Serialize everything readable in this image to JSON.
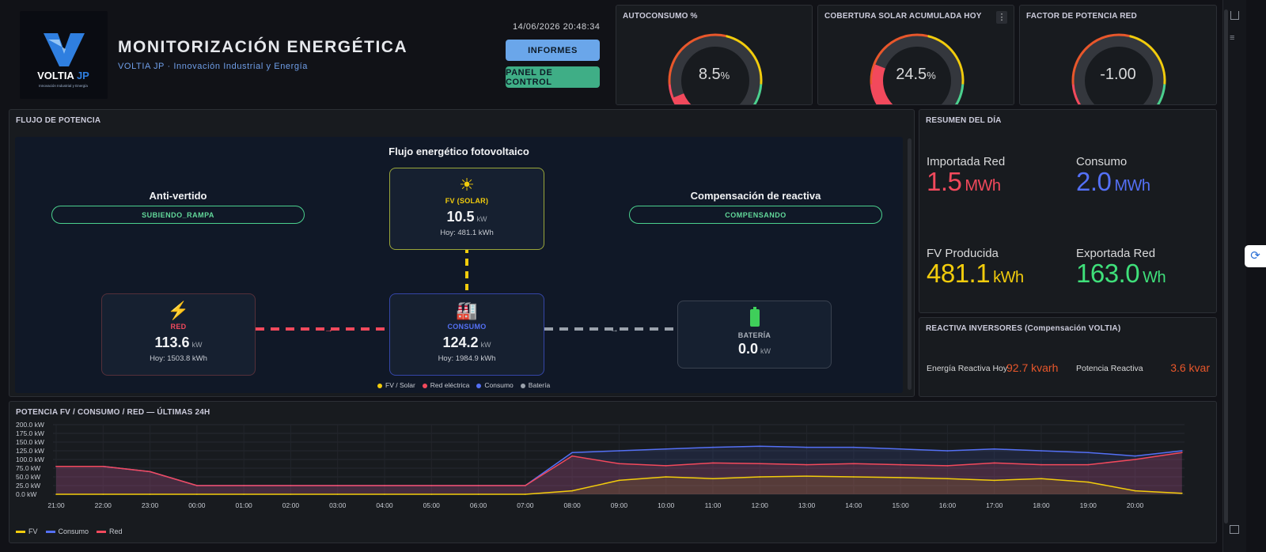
{
  "header": {
    "title": "MONITORIZACIÓN ENERGÉTICA",
    "subtitle": "VOLTIA JP · Innovación Industrial y Energía",
    "datetime": "14/06/2026 20:48:34",
    "logo_text": "VOLTIA JP",
    "logo_tagline": "Innovación Industrial y Energía",
    "btn_informes": "INFORMES",
    "btn_panel": "PANEL DE CONTROL"
  },
  "gauges": [
    {
      "title": "AUTOCONSUMO %",
      "value": "8.5",
      "unit": "%",
      "fraction": 0.085
    },
    {
      "title": "COBERTURA SOLAR ACUMULADA HOY",
      "value": "24.5",
      "unit": "%",
      "fraction": 0.245
    },
    {
      "title": "FACTOR DE POTENCIA RED",
      "value": "-1.00",
      "unit": "",
      "fraction": 0.0
    }
  ],
  "flow": {
    "panel_title": "FLUJO DE POTENCIA",
    "title": "Flujo energético fotovoltaico",
    "anti_vertido_title": "Anti-vertido",
    "anti_vertido_status": "SUBIENDO_RAMPA",
    "compensacion_title": "Compensación de reactiva",
    "compensacion_status": "COMPENSANDO",
    "solar": {
      "label": "FV (SOLAR)",
      "value": "10.5",
      "unit": "kW",
      "today": "Hoy: 481.1 kWh"
    },
    "red": {
      "label": "RED",
      "value": "113.6",
      "unit": "kW",
      "today": "Hoy: 1503.8 kWh"
    },
    "consumo": {
      "label": "CONSUMO",
      "value": "124.2",
      "unit": "kW",
      "today": "Hoy: 1984.9 kWh"
    },
    "bateria": {
      "label": "BATERÍA",
      "value": "0.0",
      "unit": "kW"
    },
    "legend": [
      "FV / Solar",
      "Red eléctrica",
      "Consumo",
      "Batería"
    ]
  },
  "summary": {
    "panel_title": "RESUMEN DEL DÍA",
    "importada_label": "Importada Red",
    "importada_value": "1.5",
    "importada_unit": "MWh",
    "consumo_label": "Consumo",
    "consumo_value": "2.0",
    "consumo_unit": "MWh",
    "fv_label": "FV Producida",
    "fv_value": "481.1",
    "fv_unit": "kWh",
    "exportada_label": "Exportada Red",
    "exportada_value": "163.0",
    "exportada_unit": "Wh"
  },
  "reactiva": {
    "panel_title": "REACTIVA INVERSORES (Compensación VOLTIA)",
    "energia_label": "Energía Reactiva Hoy",
    "energia_value": "92.7",
    "energia_unit": "kvarh",
    "potencia_label": "Potencia Reactiva",
    "potencia_value": "3.6",
    "potencia_unit": "kvar"
  },
  "colors": {
    "solar": "#f2cc0c",
    "red": "#f2495c",
    "consumo": "#5470f5",
    "bateria": "#9aa1ab",
    "green": "#4bd08e"
  },
  "chart_data": {
    "type": "line",
    "title": "POTENCIA FV / CONSUMO / RED — ÚLTIMAS 24H",
    "y_ticks": [
      "200.0 kW",
      "175.0 kW",
      "150.0 kW",
      "125.0 kW",
      "100.0 kW",
      "75.0 kW",
      "50.0 kW",
      "25.0 kW",
      "0.0 kW"
    ],
    "ylim": [
      0,
      200
    ],
    "x_ticks": [
      "21:00",
      "22:00",
      "23:00",
      "00:00",
      "01:00",
      "02:00",
      "03:00",
      "04:00",
      "05:00",
      "06:00",
      "07:00",
      "08:00",
      "09:00",
      "10:00",
      "11:00",
      "12:00",
      "13:00",
      "14:00",
      "15:00",
      "16:00",
      "17:00",
      "18:00",
      "19:00",
      "20:00"
    ],
    "x_hours": [
      21,
      22,
      23,
      24,
      25,
      26,
      27,
      28,
      29,
      30,
      31,
      32,
      33,
      34,
      35,
      36,
      37,
      38,
      39,
      40,
      41,
      42,
      43,
      44,
      45
    ],
    "legend": [
      "FV",
      "Consumo",
      "Red"
    ],
    "series": [
      {
        "name": "FV",
        "values": [
          0,
          0,
          0,
          0,
          0,
          0,
          0,
          0,
          0,
          0,
          0,
          10,
          40,
          50,
          45,
          50,
          52,
          50,
          48,
          45,
          40,
          45,
          35,
          10,
          3
        ]
      },
      {
        "name": "Consumo",
        "values": [
          80,
          80,
          65,
          25,
          25,
          25,
          25,
          25,
          25,
          25,
          25,
          120,
          125,
          130,
          135,
          138,
          135,
          135,
          130,
          125,
          130,
          125,
          120,
          110,
          125
        ]
      },
      {
        "name": "Red",
        "values": [
          80,
          80,
          65,
          25,
          25,
          25,
          25,
          25,
          25,
          25,
          25,
          110,
          88,
          82,
          90,
          88,
          85,
          88,
          85,
          82,
          90,
          85,
          85,
          100,
          120
        ]
      }
    ]
  }
}
